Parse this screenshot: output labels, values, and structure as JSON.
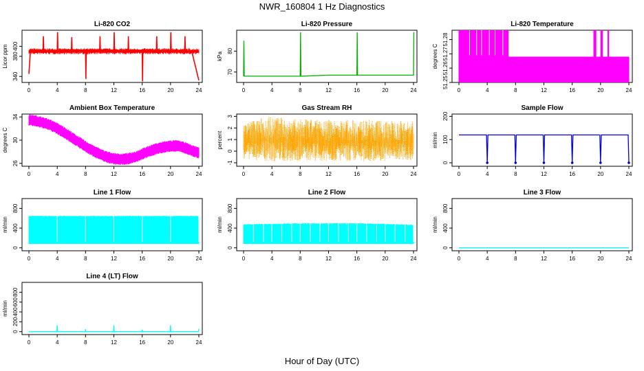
{
  "figure": {
    "title": "NWR_160804  1 Hz Diagnostics",
    "xlabel": "Hour of Day (UTC)"
  },
  "chart_data": [
    {
      "type": "line",
      "title": "Li-820 CO2",
      "ylabel": "Licor ppm",
      "color": "#ff0000",
      "x_ticks": [
        "0",
        "4",
        "8",
        "12",
        "16",
        "20",
        "24"
      ],
      "xlim": [
        0,
        24
      ],
      "y_ticks": [
        "340",
        "380",
        "400"
      ],
      "ylim": [
        328,
        432
      ],
      "series": [
        {
          "x": [
            0,
            0.2,
            0.5,
            1,
            2,
            2.05,
            2.1,
            3,
            4,
            4.05,
            4.1,
            5,
            6,
            6.05,
            6.1,
            7,
            8,
            8.05,
            8.1,
            9,
            10,
            10.05,
            10.1,
            11,
            12,
            12.05,
            12.1,
            13,
            14,
            14.05,
            14.1,
            15,
            16,
            16.05,
            16.1,
            17,
            18,
            18.05,
            18.1,
            19,
            20,
            20.05,
            20.1,
            21,
            22,
            22.05,
            22.1,
            23,
            24
          ],
          "y": [
            345,
            388,
            390,
            392,
            392,
            420,
            392,
            392,
            392,
            428,
            392,
            393,
            393,
            418,
            393,
            393,
            392,
            335,
            392,
            393,
            393,
            420,
            393,
            393,
            392,
            428,
            392,
            392,
            392,
            420,
            392,
            392,
            392,
            330,
            392,
            392,
            392,
            420,
            392,
            392,
            392,
            428,
            392,
            392,
            392,
            420,
            392,
            390,
            332
          ]
        }
      ]
    },
    {
      "type": "line",
      "title": "Li-820 Pressure",
      "ylabel": "kPa",
      "color": "#00b000",
      "x_ticks": [
        "0",
        "4",
        "8",
        "12",
        "16",
        "20",
        "24"
      ],
      "xlim": [
        0,
        24
      ],
      "y_ticks": [
        "70",
        "80"
      ],
      "ylim": [
        65,
        90
      ],
      "series": [
        {
          "x": [
            0,
            0.05,
            0.1,
            0.2,
            4,
            8,
            8.05,
            8.1,
            12,
            16,
            16.05,
            16.1,
            20,
            24,
            24.05
          ],
          "y": [
            68,
            85,
            68,
            68,
            68,
            68,
            89,
            68,
            68.5,
            68.5,
            89,
            68.5,
            68.5,
            68.5,
            89
          ]
        }
      ]
    },
    {
      "type": "line",
      "title": "Li-820 Temperature",
      "ylabel": "degrees C",
      "color": "#ff00ff",
      "x_ticks": [
        "0",
        "4",
        "8",
        "12",
        "16",
        "20",
        "24"
      ],
      "xlim": [
        0,
        24
      ],
      "y_ticks": [
        "51.25",
        "51.26",
        "51.27",
        "51.28"
      ],
      "ylim": [
        51.25,
        51.2865
      ],
      "series": [
        {
          "x": [
            0,
            2,
            4,
            6,
            7,
            8.5,
            12,
            16,
            19,
            20,
            22,
            24
          ],
          "y": [
            51.2865,
            51.2865,
            51.2865,
            51.2865,
            51.2865,
            51.268,
            51.268,
            51.268,
            51.2865,
            51.268,
            51.268,
            51.268
          ]
        }
      ]
    },
    {
      "type": "line",
      "title": "Ambient Box Temperature",
      "ylabel": "degrees C",
      "color": "#ff00ff",
      "x_ticks": [
        "0",
        "4",
        "8",
        "12",
        "16",
        "20",
        "24"
      ],
      "xlim": [
        0,
        24
      ],
      "y_ticks": [
        "26",
        "30",
        "34"
      ],
      "ylim": [
        25.5,
        34.5
      ],
      "series": [
        {
          "x": [
            0,
            1,
            2,
            3,
            4,
            5,
            6,
            7,
            8,
            9,
            10,
            11,
            12,
            13,
            14,
            15,
            16,
            17,
            18,
            19,
            20,
            21,
            22,
            23,
            24
          ],
          "y": [
            33.5,
            33.3,
            33,
            32.6,
            32,
            31.3,
            30.5,
            29.7,
            28.9,
            28.2,
            27.6,
            27.1,
            26.8,
            26.7,
            26.8,
            27.1,
            27.6,
            28.1,
            28.5,
            28.8,
            29,
            29,
            28.7,
            28.2,
            27.8
          ]
        }
      ]
    },
    {
      "type": "line",
      "title": "Gas Stream RH",
      "ylabel": "percent",
      "color": "#ffa500",
      "x_ticks": [
        "0",
        "4",
        "8",
        "12",
        "16",
        "20",
        "24"
      ],
      "xlim": [
        0,
        24
      ],
      "y_ticks": [
        "-1",
        "0",
        "1",
        "2",
        "3"
      ],
      "ylim": [
        -1.3,
        3.2
      ],
      "series": [
        {
          "x": [
            0,
            0.5,
            1,
            4,
            6,
            12,
            18,
            24
          ],
          "y": [
            2.6,
            2.5,
            2.7,
            3.1,
            2.8,
            2.7,
            2.7,
            2.6
          ]
        },
        {
          "x": [
            0,
            4,
            8,
            12,
            16,
            20,
            24
          ],
          "y": [
            -0.8,
            -1.1,
            -1,
            -1,
            -1.1,
            -1,
            -0.9
          ]
        }
      ]
    },
    {
      "type": "line",
      "title": "Sample Flow",
      "ylabel": "ml/min",
      "color": "#0000dd",
      "x_ticks": [
        "0",
        "4",
        "8",
        "12",
        "16",
        "20",
        "24"
      ],
      "xlim": [
        0,
        24
      ],
      "y_ticks": [
        "0",
        "100",
        "200"
      ],
      "ylim": [
        -15,
        210
      ],
      "series": [
        {
          "x": [
            0,
            3.9,
            4,
            4.1,
            7.9,
            8,
            8.1,
            11.9,
            12,
            12.1,
            15.9,
            16,
            16.1,
            19.9,
            20,
            20.1,
            23.9,
            24
          ],
          "y": [
            120,
            120,
            0,
            120,
            120,
            0,
            120,
            120,
            0,
            120,
            120,
            0,
            120,
            120,
            0,
            120,
            120,
            0
          ]
        }
      ]
    },
    {
      "type": "area",
      "title": "Line 1 Flow",
      "ylabel": "ml/min",
      "color": "#00ffff",
      "x_ticks": [
        "0",
        "4",
        "8",
        "12",
        "16",
        "20",
        "24"
      ],
      "xlim": [
        0,
        24
      ],
      "y_ticks": [
        "0",
        "400",
        "800"
      ],
      "ylim": [
        -60,
        1000
      ],
      "series": [
        {
          "x": [
            0,
            4,
            8,
            12,
            16,
            20,
            24
          ],
          "y": [
            650,
            650,
            650,
            650,
            650,
            650,
            650
          ]
        },
        {
          "x": [
            0,
            4,
            8,
            12,
            16,
            20,
            24
          ],
          "y": [
            80,
            80,
            80,
            80,
            80,
            80,
            80
          ]
        }
      ]
    },
    {
      "type": "area",
      "title": "Line 2 Flow",
      "ylabel": "ml/min",
      "color": "#00ffff",
      "x_ticks": [
        "0",
        "4",
        "8",
        "12",
        "16",
        "20",
        "24"
      ],
      "xlim": [
        0,
        24
      ],
      "y_ticks": [
        "0",
        "400",
        "800"
      ],
      "ylim": [
        -60,
        1000
      ],
      "series": [
        {
          "x": [
            0,
            4,
            8,
            12,
            16,
            20,
            24
          ],
          "y": [
            480,
            490,
            500,
            500,
            500,
            490,
            470
          ]
        },
        {
          "x": [
            0,
            4,
            8,
            12,
            16,
            20,
            24
          ],
          "y": [
            80,
            80,
            80,
            80,
            80,
            80,
            80
          ]
        }
      ]
    },
    {
      "type": "line",
      "title": "Line 3 Flow",
      "ylabel": "ml/min",
      "color": "#00ffff",
      "x_ticks": [
        "0",
        "4",
        "8",
        "12",
        "16",
        "20",
        "24"
      ],
      "xlim": [
        0,
        24
      ],
      "y_ticks": [
        "0",
        "400",
        "800"
      ],
      "ylim": [
        -60,
        1000
      ],
      "series": [
        {
          "x": [
            0,
            24
          ],
          "y": [
            0,
            0
          ]
        }
      ]
    },
    {
      "type": "line",
      "title": "Line 4 (LT) Flow",
      "ylabel": "ml/min",
      "color": "#00ffff",
      "x_ticks": [
        "0",
        "4",
        "8",
        "12",
        "16",
        "20",
        "24"
      ],
      "xlim": [
        0,
        24
      ],
      "y_ticks": [
        "0",
        "200",
        "400",
        "600",
        "800"
      ],
      "ylim": [
        -60,
        1000
      ],
      "series": [
        {
          "x": [
            0,
            3.95,
            4,
            4.05,
            7.95,
            8,
            8.05,
            11.95,
            12,
            12.05,
            15.95,
            16,
            16.05,
            19.95,
            20,
            20.05,
            23.95,
            24
          ],
          "y": [
            0,
            0,
            130,
            0,
            0,
            50,
            0,
            0,
            130,
            0,
            0,
            40,
            0,
            0,
            130,
            0,
            0,
            60
          ]
        }
      ]
    }
  ]
}
